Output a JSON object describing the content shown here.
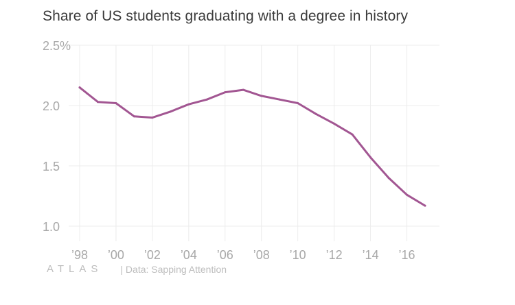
{
  "chart_data": {
    "type": "line",
    "title": "Share of US students graduating with a degree in history",
    "xlabel": "",
    "ylabel": "",
    "x": [
      1998,
      1999,
      2000,
      2001,
      2002,
      2003,
      2004,
      2005,
      2006,
      2007,
      2008,
      2009,
      2010,
      2011,
      2012,
      2013,
      2014,
      2015,
      2016,
      2017
    ],
    "series": [
      {
        "values": [
          2.15,
          2.03,
          2.02,
          1.91,
          1.9,
          1.95,
          2.01,
          2.05,
          2.11,
          2.13,
          2.08,
          2.05,
          2.02,
          1.93,
          1.85,
          1.76,
          1.57,
          1.4,
          1.26,
          1.17
        ],
        "color": "#a25692"
      }
    ],
    "xlim": [
      1998,
      2017
    ],
    "ylim": [
      0.9,
      2.5
    ],
    "x_ticks": [
      1998,
      2000,
      2002,
      2004,
      2006,
      2008,
      2010,
      2012,
      2014,
      2016
    ],
    "x_tick_labels": [
      "’98",
      "’00",
      "’02",
      "’04",
      "’06",
      "’08",
      "’10",
      "’12",
      "’14",
      "’16"
    ],
    "y_ticks": [
      1.0,
      1.5,
      2.0,
      2.5
    ],
    "y_tick_labels": [
      "1.0",
      "1.5",
      "2.0",
      "2.5%"
    ],
    "grid": true,
    "legend": "none"
  },
  "footer": {
    "logo_text": "ATLAS",
    "source": "| Data: Sapping Attention"
  },
  "colors": {
    "line": "#a25692",
    "grid": "#ececec",
    "tick_text": "#a8a8a8",
    "title_text": "#3a3a3a"
  }
}
